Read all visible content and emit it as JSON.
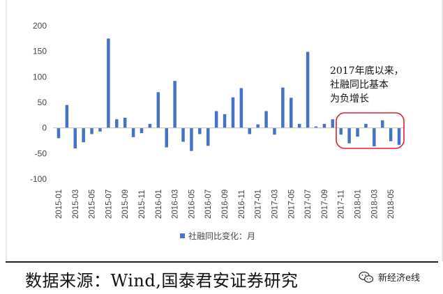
{
  "chart_data": {
    "type": "bar",
    "categories": [
      "2015-01",
      "2015-02",
      "2015-03",
      "2015-04",
      "2015-05",
      "2015-06",
      "2015-07",
      "2015-08",
      "2015-09",
      "2015-10",
      "2015-11",
      "2015-12",
      "2016-01",
      "2016-02",
      "2016-03",
      "2016-04",
      "2016-05",
      "2016-06",
      "2016-07",
      "2016-08",
      "2016-09",
      "2016-10",
      "2016-11",
      "2016-12",
      "2017-01",
      "2017-02",
      "2017-03",
      "2017-04",
      "2017-05",
      "2017-06",
      "2017-07",
      "2017-08",
      "2017-09",
      "2017-10",
      "2017-11",
      "2017-12",
      "2018-01",
      "2018-02",
      "2018-03",
      "2018-04",
      "2018-05",
      "2018-06"
    ],
    "tick_labels": [
      "2015-01",
      "2015-03",
      "2015-05",
      "2015-07",
      "2015-09",
      "2015-11",
      "2016-01",
      "2016-03",
      "2016-05",
      "2016-07",
      "2016-09",
      "2016-11",
      "2017-01",
      "2017-03",
      "2017-05",
      "2017-07",
      "2017-09",
      "2017-11",
      "2018-01",
      "2018-03",
      "2018-05"
    ],
    "series": [
      {
        "name": "社融同比变化：月",
        "values": [
          -20,
          45,
          -40,
          -28,
          -12,
          -7,
          175,
          17,
          20,
          -18,
          -10,
          8,
          70,
          -38,
          92,
          -27,
          -45,
          -12,
          -35,
          33,
          27,
          60,
          78,
          -12,
          7,
          33,
          -13,
          79,
          59,
          8,
          149,
          3,
          8,
          17,
          -13,
          -30,
          -17,
          8,
          -36,
          15,
          -26,
          -33
        ]
      }
    ],
    "yticks": [
      "200",
      "150",
      "100",
      "50",
      "0",
      "-50",
      "-100"
    ],
    "ylim": [
      -100,
      200
    ],
    "grid": false,
    "legend_position": "bottom",
    "bar_color": "#4472C4",
    "annotation": {
      "lines": [
        "2017年底以来，",
        "社融同比基本",
        "为负增长"
      ]
    },
    "highlight_color": "#E0202A"
  },
  "footer": {
    "source": "数据来源：Wind,国泰君安证券研究",
    "watermark": "新经济e线"
  }
}
